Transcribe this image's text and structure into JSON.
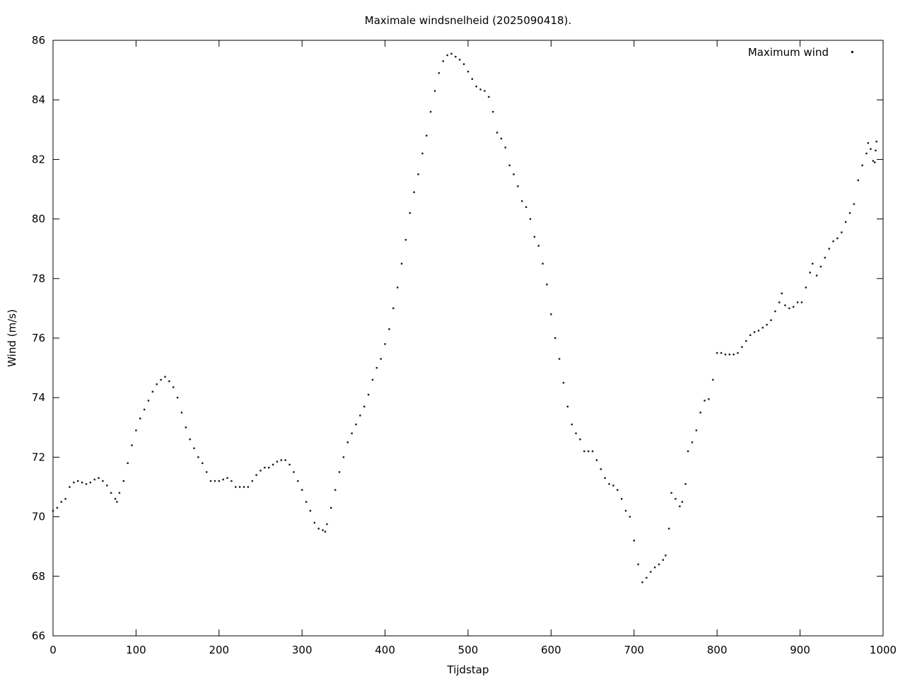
{
  "chart_data": {
    "type": "scatter",
    "title": "Maximale windsnelheid (2025090418).",
    "xlabel": "Tijdstap",
    "ylabel": "Wind (m/s)",
    "xlim": [
      0,
      1000
    ],
    "ylim": [
      66,
      86
    ],
    "xticks": [
      0,
      100,
      200,
      300,
      400,
      500,
      600,
      700,
      800,
      900,
      1000
    ],
    "yticks": [
      66,
      68,
      70,
      72,
      74,
      76,
      78,
      80,
      82,
      84,
      86
    ],
    "grid": false,
    "legend_position": "top-right",
    "color": "#1a1a1a",
    "series": [
      {
        "name": "Maximum wind",
        "points": [
          [
            0,
            70.2
          ],
          [
            5,
            70.3
          ],
          [
            10,
            70.5
          ],
          [
            15,
            70.6
          ],
          [
            20,
            71.0
          ],
          [
            25,
            71.15
          ],
          [
            30,
            71.2
          ],
          [
            35,
            71.15
          ],
          [
            40,
            71.1
          ],
          [
            45,
            71.15
          ],
          [
            50,
            71.25
          ],
          [
            55,
            71.3
          ],
          [
            60,
            71.2
          ],
          [
            65,
            71.05
          ],
          [
            70,
            70.8
          ],
          [
            75,
            70.6
          ],
          [
            77,
            70.5
          ],
          [
            80,
            70.8
          ],
          [
            85,
            71.2
          ],
          [
            90,
            71.8
          ],
          [
            95,
            72.4
          ],
          [
            100,
            72.9
          ],
          [
            105,
            73.3
          ],
          [
            110,
            73.6
          ],
          [
            115,
            73.9
          ],
          [
            120,
            74.2
          ],
          [
            125,
            74.45
          ],
          [
            130,
            74.6
          ],
          [
            135,
            74.7
          ],
          [
            140,
            74.55
          ],
          [
            145,
            74.35
          ],
          [
            150,
            74.0
          ],
          [
            155,
            73.5
          ],
          [
            160,
            73.0
          ],
          [
            165,
            72.6
          ],
          [
            170,
            72.3
          ],
          [
            175,
            72.0
          ],
          [
            180,
            71.8
          ],
          [
            185,
            71.5
          ],
          [
            190,
            71.2
          ],
          [
            195,
            71.2
          ],
          [
            200,
            71.2
          ],
          [
            205,
            71.25
          ],
          [
            210,
            71.3
          ],
          [
            215,
            71.2
          ],
          [
            220,
            71.0
          ],
          [
            225,
            71.0
          ],
          [
            230,
            71.0
          ],
          [
            235,
            71.0
          ],
          [
            240,
            71.2
          ],
          [
            245,
            71.4
          ],
          [
            250,
            71.55
          ],
          [
            255,
            71.65
          ],
          [
            260,
            71.65
          ],
          [
            265,
            71.75
          ],
          [
            270,
            71.85
          ],
          [
            275,
            71.9
          ],
          [
            280,
            71.9
          ],
          [
            285,
            71.75
          ],
          [
            290,
            71.5
          ],
          [
            295,
            71.2
          ],
          [
            300,
            70.9
          ],
          [
            305,
            70.5
          ],
          [
            310,
            70.2
          ],
          [
            315,
            69.8
          ],
          [
            320,
            69.6
          ],
          [
            325,
            69.55
          ],
          [
            328,
            69.5
          ],
          [
            330,
            69.75
          ],
          [
            335,
            70.3
          ],
          [
            340,
            70.9
          ],
          [
            345,
            71.5
          ],
          [
            350,
            72.0
          ],
          [
            355,
            72.5
          ],
          [
            360,
            72.8
          ],
          [
            365,
            73.1
          ],
          [
            370,
            73.4
          ],
          [
            375,
            73.7
          ],
          [
            380,
            74.1
          ],
          [
            385,
            74.6
          ],
          [
            390,
            75.0
          ],
          [
            395,
            75.3
          ],
          [
            400,
            75.8
          ],
          [
            405,
            76.3
          ],
          [
            410,
            77.0
          ],
          [
            415,
            77.7
          ],
          [
            420,
            78.5
          ],
          [
            425,
            79.3
          ],
          [
            430,
            80.2
          ],
          [
            435,
            80.9
          ],
          [
            440,
            81.5
          ],
          [
            445,
            82.2
          ],
          [
            450,
            82.8
          ],
          [
            455,
            83.6
          ],
          [
            460,
            84.3
          ],
          [
            465,
            84.9
          ],
          [
            470,
            85.3
          ],
          [
            475,
            85.5
          ],
          [
            480,
            85.55
          ],
          [
            485,
            85.45
          ],
          [
            490,
            85.35
          ],
          [
            495,
            85.2
          ],
          [
            500,
            84.95
          ],
          [
            505,
            84.7
          ],
          [
            510,
            84.45
          ],
          [
            515,
            84.35
          ],
          [
            520,
            84.3
          ],
          [
            525,
            84.1
          ],
          [
            530,
            83.6
          ],
          [
            535,
            82.9
          ],
          [
            540,
            82.7
          ],
          [
            545,
            82.4
          ],
          [
            550,
            81.8
          ],
          [
            555,
            81.5
          ],
          [
            560,
            81.1
          ],
          [
            565,
            80.6
          ],
          [
            570,
            80.4
          ],
          [
            575,
            80.0
          ],
          [
            580,
            79.4
          ],
          [
            585,
            79.1
          ],
          [
            590,
            78.5
          ],
          [
            595,
            77.8
          ],
          [
            600,
            76.8
          ],
          [
            605,
            76.0
          ],
          [
            610,
            75.3
          ],
          [
            615,
            74.5
          ],
          [
            620,
            73.7
          ],
          [
            625,
            73.1
          ],
          [
            630,
            72.8
          ],
          [
            635,
            72.6
          ],
          [
            640,
            72.2
          ],
          [
            645,
            72.2
          ],
          [
            650,
            72.2
          ],
          [
            655,
            71.9
          ],
          [
            660,
            71.6
          ],
          [
            665,
            71.3
          ],
          [
            670,
            71.1
          ],
          [
            675,
            71.05
          ],
          [
            680,
            70.9
          ],
          [
            685,
            70.6
          ],
          [
            690,
            70.2
          ],
          [
            695,
            70.0
          ],
          [
            700,
            69.2
          ],
          [
            705,
            68.4
          ],
          [
            710,
            67.8
          ],
          [
            715,
            67.95
          ],
          [
            720,
            68.15
          ],
          [
            725,
            68.3
          ],
          [
            730,
            68.4
          ],
          [
            735,
            68.55
          ],
          [
            738,
            68.7
          ],
          [
            742,
            69.6
          ],
          [
            745,
            70.8
          ],
          [
            750,
            70.6
          ],
          [
            755,
            70.35
          ],
          [
            758,
            70.5
          ],
          [
            762,
            71.1
          ],
          [
            765,
            72.2
          ],
          [
            770,
            72.5
          ],
          [
            775,
            72.9
          ],
          [
            780,
            73.5
          ],
          [
            785,
            73.9
          ],
          [
            790,
            73.95
          ],
          [
            795,
            74.6
          ],
          [
            800,
            75.5
          ],
          [
            805,
            75.5
          ],
          [
            810,
            75.45
          ],
          [
            815,
            75.45
          ],
          [
            820,
            75.45
          ],
          [
            825,
            75.5
          ],
          [
            830,
            75.7
          ],
          [
            835,
            75.9
          ],
          [
            840,
            76.1
          ],
          [
            845,
            76.2
          ],
          [
            850,
            76.25
          ],
          [
            855,
            76.35
          ],
          [
            860,
            76.45
          ],
          [
            865,
            76.6
          ],
          [
            870,
            76.9
          ],
          [
            875,
            77.2
          ],
          [
            878,
            77.5
          ],
          [
            882,
            77.1
          ],
          [
            887,
            77.0
          ],
          [
            892,
            77.05
          ],
          [
            897,
            77.2
          ],
          [
            902,
            77.2
          ],
          [
            907,
            77.7
          ],
          [
            912,
            78.2
          ],
          [
            915,
            78.5
          ],
          [
            920,
            78.1
          ],
          [
            925,
            78.4
          ],
          [
            930,
            78.7
          ],
          [
            935,
            79.0
          ],
          [
            940,
            79.25
          ],
          [
            945,
            79.35
          ],
          [
            950,
            79.55
          ],
          [
            955,
            79.9
          ],
          [
            960,
            80.2
          ],
          [
            965,
            80.5
          ],
          [
            970,
            81.3
          ],
          [
            975,
            81.8
          ],
          [
            980,
            82.2
          ],
          [
            982,
            82.55
          ],
          [
            985,
            82.35
          ],
          [
            988,
            81.95
          ],
          [
            990,
            81.9
          ],
          [
            991,
            82.3
          ],
          [
            992,
            82.6
          ]
        ]
      }
    ]
  }
}
